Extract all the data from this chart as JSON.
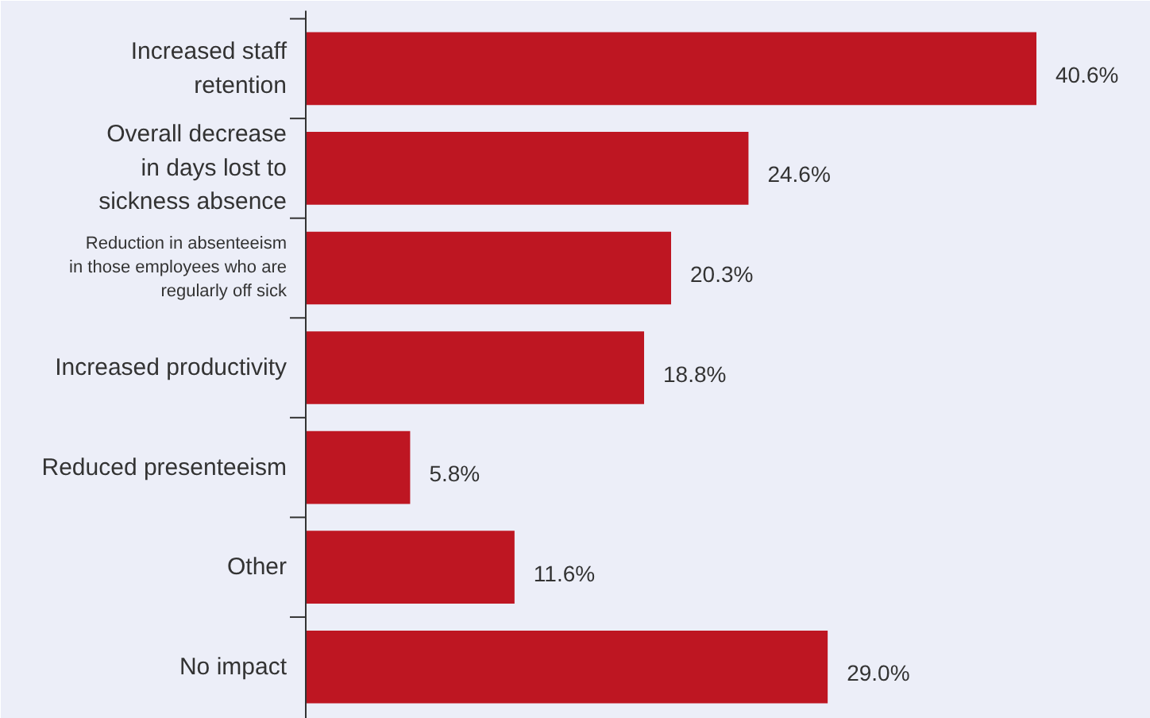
{
  "chart_data": {
    "type": "bar",
    "orientation": "horizontal",
    "categories": [
      "Increased staff\nretention",
      "Overall decrease\nin days lost to\nsickness absence",
      "Reduction in absenteeism\nin those employees who are\nregularly off sick",
      "Increased productivity",
      "Reduced presenteeism",
      "Other",
      "No impact"
    ],
    "values": [
      40.6,
      24.6,
      20.3,
      18.8,
      5.8,
      11.6,
      29.0
    ],
    "value_labels": [
      "40.6%",
      "24.6%",
      "20.3%",
      "18.8%",
      "5.8%",
      "11.6%",
      "29.0%"
    ],
    "color": "#be1622"
  }
}
